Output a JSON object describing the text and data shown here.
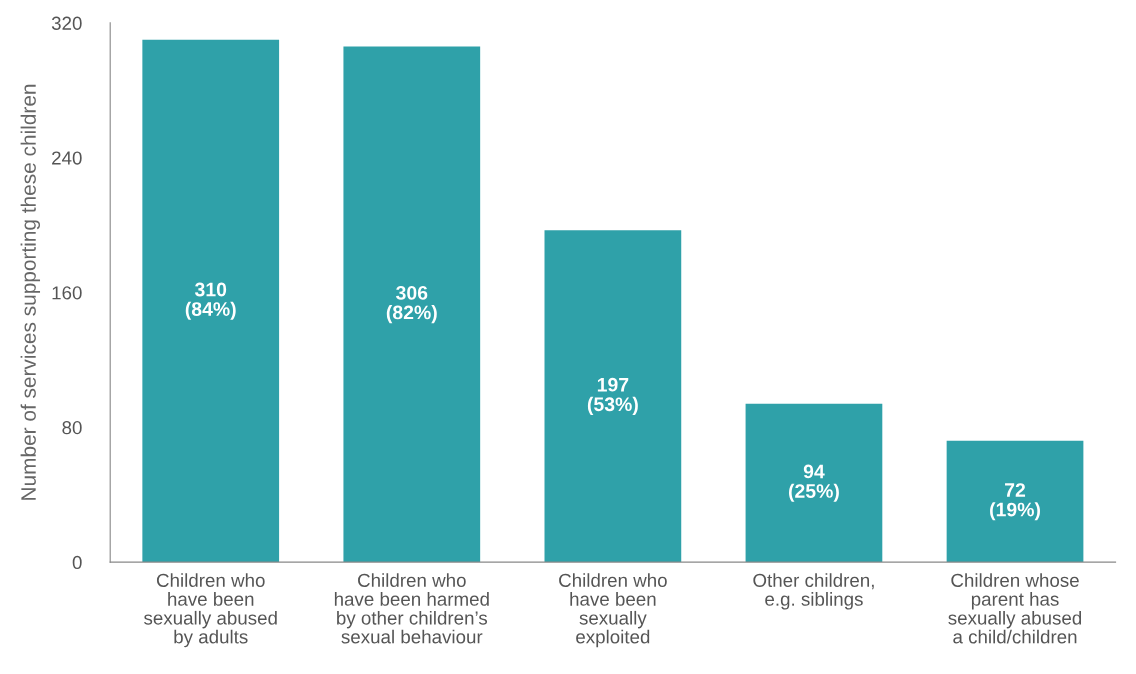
{
  "chart_data": {
    "type": "bar",
    "ylabel": "Number of services supporting these children",
    "categories": [
      "Children who\nhave been\nsexually abused\nby adults",
      "Children who\nhave been harmed\nby other children’s\nsexual behaviour",
      "Children who\nhave been\nsexually\nexploited",
      "Other children,\ne.g. siblings",
      "Children whose\nparent has\nsexually abused\na child/children"
    ],
    "values": [
      310,
      306,
      197,
      94,
      72
    ],
    "value_labels": [
      "310\n(84%)",
      "306\n(82%)",
      "197\n(53%)",
      "94\n(25%)",
      "72\n(19%)"
    ],
    "color": "#2fa1a9",
    "ylim": [
      0,
      320
    ],
    "yticks": [
      0,
      80,
      160,
      240,
      320
    ],
    "grid": false
  }
}
